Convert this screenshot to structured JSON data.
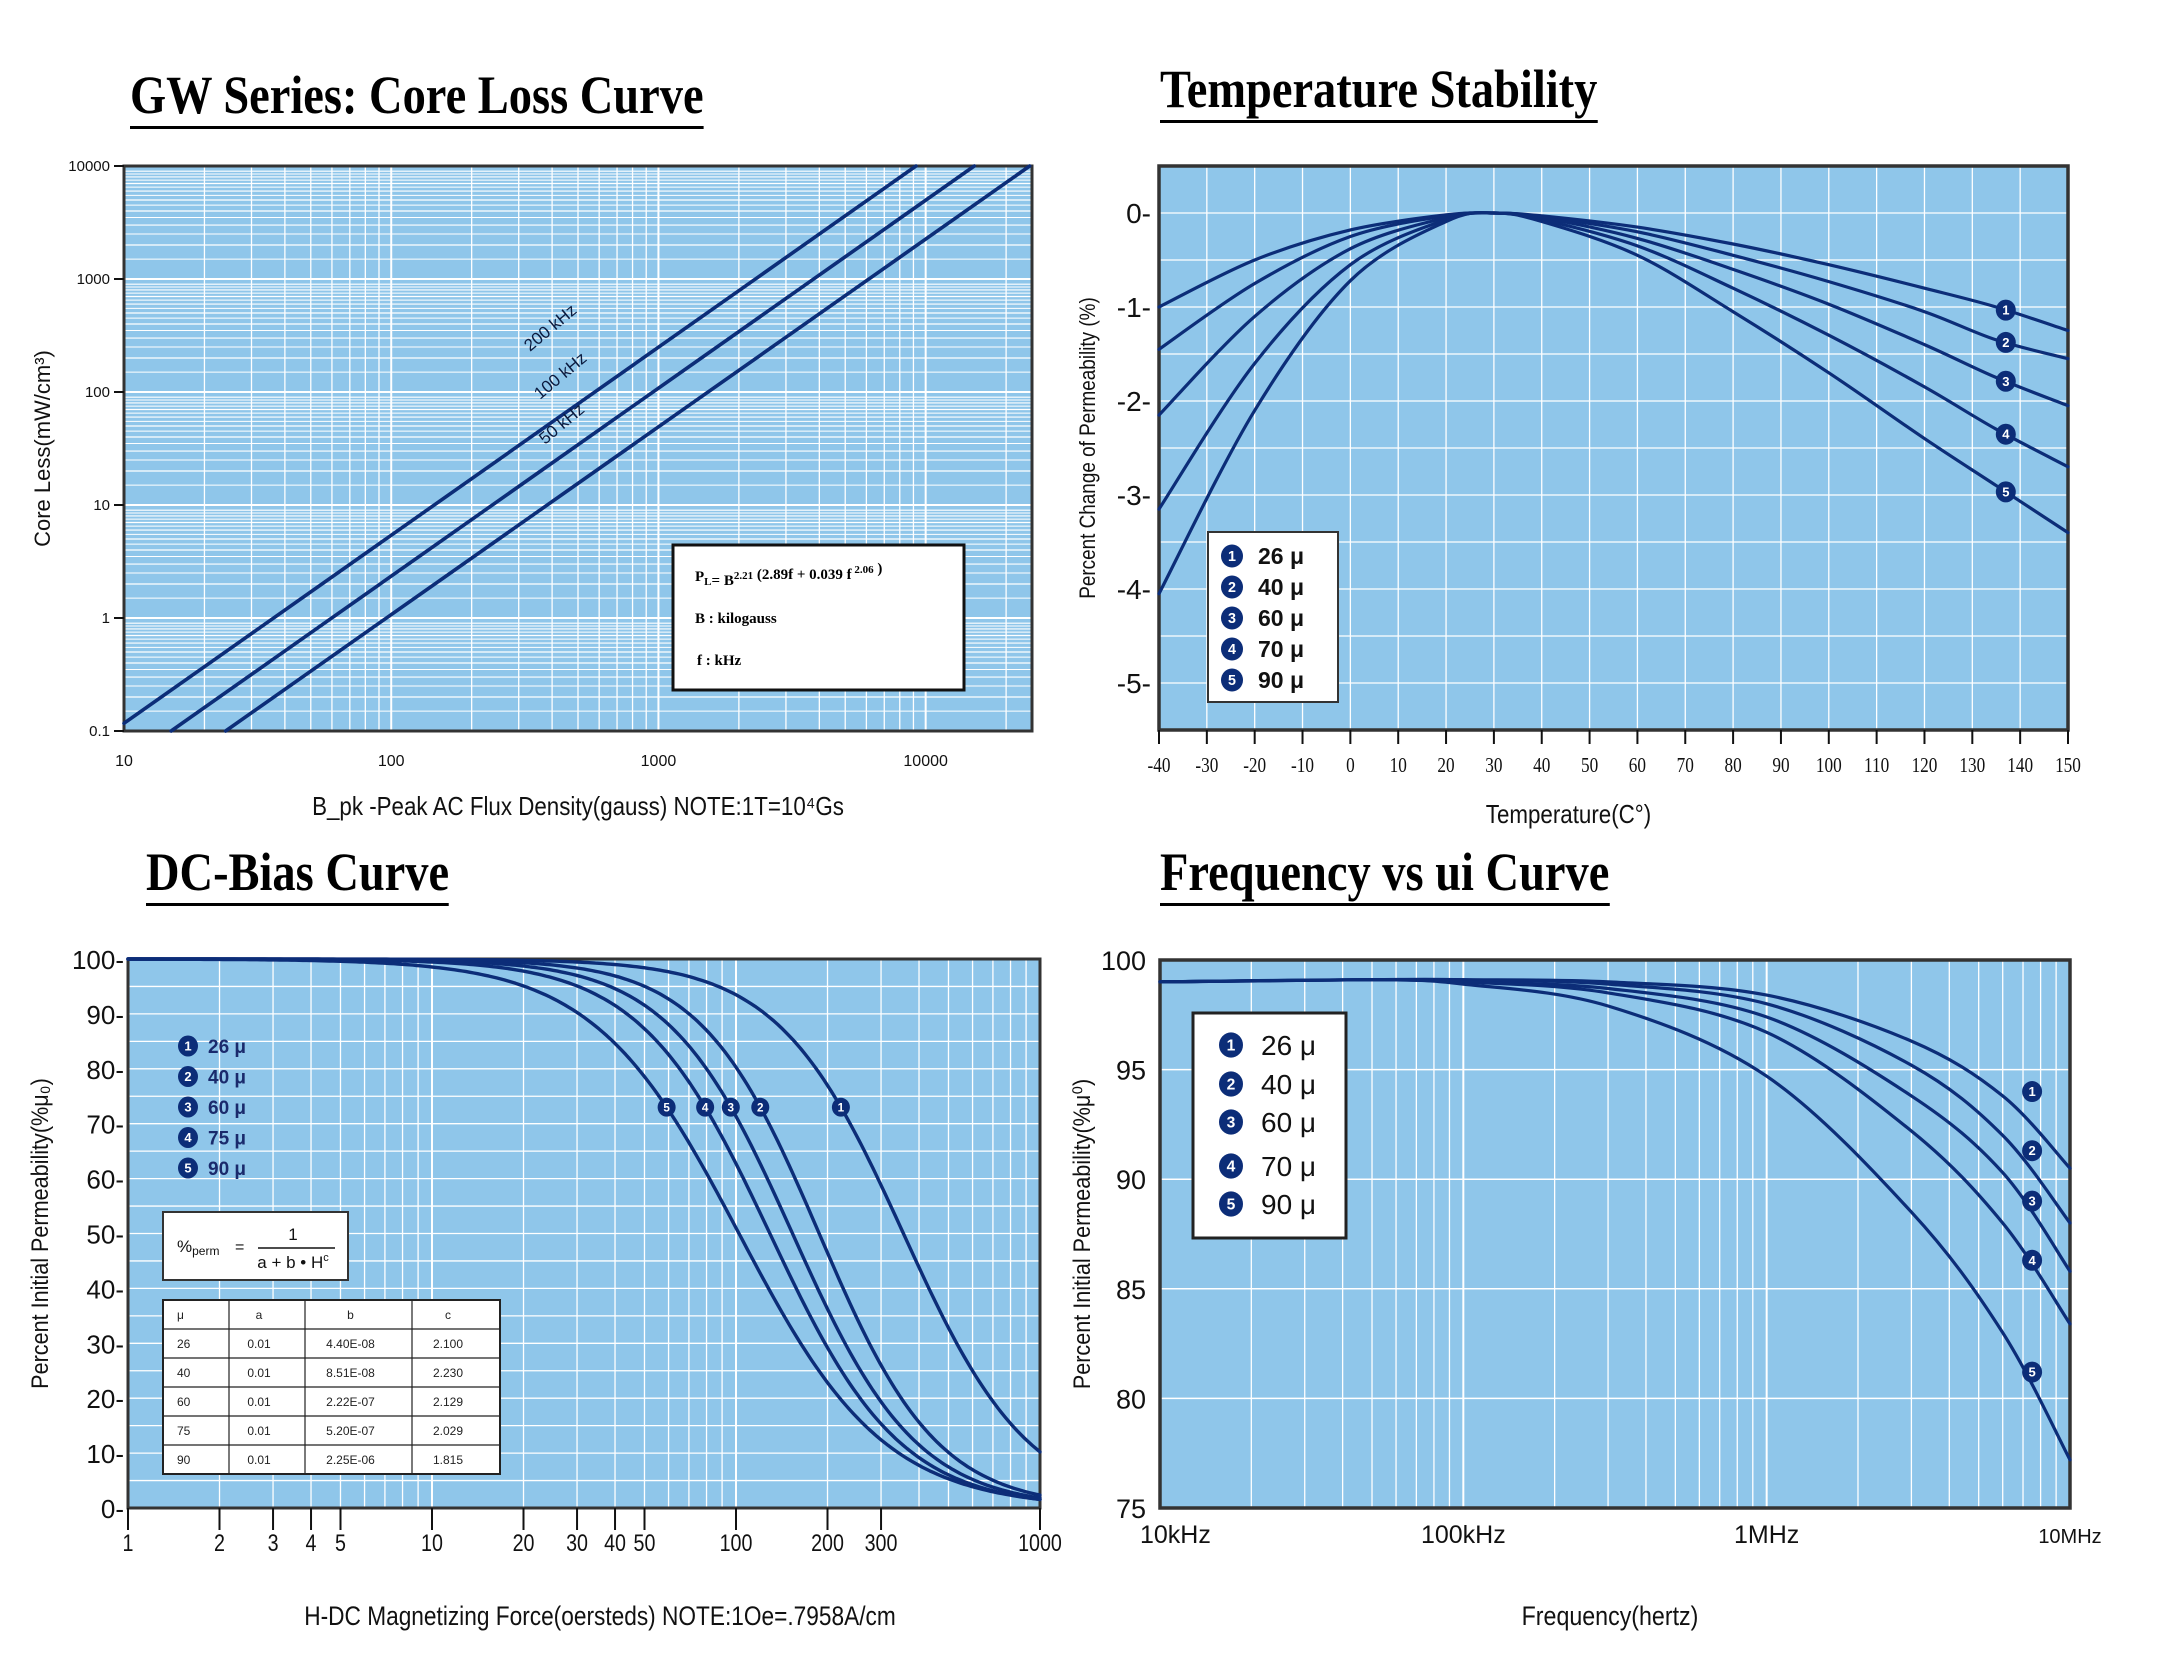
{
  "panels": {
    "core_loss": {
      "title": "GW Series: Core Loss Curve"
    },
    "temperature": {
      "title": "Temperature Stability"
    },
    "dc_bias": {
      "title": "DC-Bias Curve"
    },
    "frequency": {
      "title": "Frequency vs ui Curve"
    }
  },
  "colors": {
    "plot_bg": "#8fc6ea",
    "grid": "#ffffff",
    "curve": "#0c2d78",
    "frame": "#333333"
  },
  "icon": "circled-number-marker",
  "chart_data": [
    {
      "id": "core_loss",
      "type": "line",
      "title": "GW Series: Core Loss Curve",
      "xlabel": "B_pk -Peak AC Flux Density(gauss)  NOTE:1T=10⁴Gs",
      "ylabel": "Core Less(mW/cm³)",
      "xscale": "log",
      "yscale": "log",
      "xlim": [
        10,
        25000
      ],
      "ylim": [
        0.1,
        10000
      ],
      "xticks": [
        "10",
        "100",
        "1000",
        "10000"
      ],
      "yticks": [
        "0.1",
        "1",
        "10",
        "100",
        "1000",
        "10000"
      ],
      "grid": true,
      "series": [
        {
          "name": "200 kHz",
          "x": [
            10,
            9200
          ],
          "y": [
            0.117,
            10000
          ]
        },
        {
          "name": "100 kHz",
          "x": [
            15,
            15200
          ],
          "y": [
            0.1,
            10000
          ]
        },
        {
          "name": "50 kHz",
          "x": [
            24,
            24500
          ],
          "y": [
            0.1,
            10000
          ]
        }
      ],
      "formula": {
        "line1": "P",
        "line1_sub": "L",
        "line1_mid": "= B",
        "line1_sup": "2.21",
        "line1_rest": " (2.89f + 0.039 f",
        "line1_sup2": " 2.06",
        "line1_end": " )",
        "line2": "B : kilogauss",
        "line3": "f  : kHz"
      }
    },
    {
      "id": "temperature",
      "type": "line",
      "title": "Temperature Stability",
      "xlabel": "Temperature(C°)",
      "ylabel": "Percent Change of Permeability (%)",
      "xlim": [
        -40,
        150
      ],
      "ylim": [
        -5.5,
        0.5
      ],
      "xticks": [
        "-40",
        "-30",
        "-20",
        "-10",
        "0",
        "10",
        "20",
        "30",
        "40",
        "50",
        "60",
        "70",
        "80",
        "90",
        "100",
        "110",
        "120",
        "130",
        "140",
        "150"
      ],
      "yticks": [
        "0-",
        "-1-",
        "-2-",
        "-3-",
        "-4-",
        "-5-"
      ],
      "grid": true,
      "legend": {
        "placement": "bottom-left",
        "entries": [
          "26 μ",
          "40 μ",
          "60 μ",
          "70 μ",
          "90 μ"
        ]
      },
      "series": [
        {
          "name": "26 μ",
          "x": [
            -40,
            -20,
            0,
            20,
            30,
            40,
            60,
            80,
            100,
            120,
            135,
            150
          ],
          "y": [
            -1.0,
            -0.5,
            -0.18,
            -0.02,
            0,
            -0.03,
            -0.15,
            -0.33,
            -0.55,
            -0.8,
            -1.0,
            -1.25
          ]
        },
        {
          "name": "40 μ",
          "x": [
            -40,
            -20,
            0,
            20,
            30,
            40,
            60,
            80,
            100,
            120,
            135,
            150
          ],
          "y": [
            -1.45,
            -0.75,
            -0.25,
            -0.03,
            0,
            -0.04,
            -0.2,
            -0.45,
            -0.73,
            -1.05,
            -1.35,
            -1.55
          ]
        },
        {
          "name": "60 μ",
          "x": [
            -40,
            -20,
            0,
            20,
            30,
            40,
            60,
            80,
            100,
            120,
            135,
            150
          ],
          "y": [
            -2.15,
            -1.1,
            -0.38,
            -0.05,
            0,
            -0.05,
            -0.27,
            -0.6,
            -0.97,
            -1.4,
            -1.75,
            -2.05
          ]
        },
        {
          "name": "70 μ",
          "x": [
            -40,
            -20,
            0,
            20,
            30,
            40,
            60,
            80,
            100,
            120,
            135,
            150
          ],
          "y": [
            -3.15,
            -1.6,
            -0.55,
            -0.07,
            0,
            -0.07,
            -0.35,
            -0.8,
            -1.3,
            -1.85,
            -2.3,
            -2.7
          ]
        },
        {
          "name": "90 μ",
          "x": [
            -40,
            -20,
            0,
            20,
            30,
            40,
            60,
            80,
            100,
            120,
            135,
            150
          ],
          "y": [
            -4.05,
            -2.1,
            -0.72,
            -0.09,
            0,
            -0.09,
            -0.45,
            -1.05,
            -1.7,
            -2.4,
            -2.9,
            -3.4
          ]
        }
      ]
    },
    {
      "id": "dc_bias",
      "type": "line",
      "title": "DC-Bias Curve",
      "xlabel": "H-DC Magnetizing Force(oersteds) NOTE:1Oe=.7958A/cm",
      "ylabel": "Percent Initial Permeability(%μ₀)",
      "xscale": "log",
      "xlim": [
        1,
        1000
      ],
      "ylim": [
        0,
        100
      ],
      "xticks": [
        "1",
        "2",
        "3",
        "4",
        "5",
        "10",
        "20",
        "30",
        "40",
        "50",
        "100",
        "200",
        "300",
        "1000"
      ],
      "yticks": [
        "0-",
        "10-",
        "20-",
        "30-",
        "40-",
        "50-",
        "60-",
        "70-",
        "80-",
        "90-",
        "100-"
      ],
      "grid": true,
      "legend": {
        "placement": "top-left",
        "entries": [
          "26 μ",
          "40 μ",
          "60 μ",
          "75 μ",
          "90 μ"
        ]
      },
      "formula": {
        "lhs": "%",
        "lhs_sub": "perm",
        "eq": "=",
        "num": "1",
        "den": "a + b • H",
        "den_sup": "c"
      },
      "table": {
        "columns": [
          "μ",
          "a",
          "b",
          "c"
        ],
        "rows": [
          [
            "26",
            "0.01",
            "4.40E-08",
            "2.100"
          ],
          [
            "40",
            "0.01",
            "8.51E-08",
            "2.230"
          ],
          [
            "60",
            "0.01",
            "2.22E-07",
            "2.129"
          ],
          [
            "75",
            "0.01",
            "5.20E-07",
            "2.029"
          ],
          [
            "90",
            "0.01",
            "2.25E-06",
            "1.815"
          ]
        ]
      },
      "series": [
        {
          "name": "26 μ",
          "a": 0.01,
          "b": 4.4e-08,
          "c": 2.1
        },
        {
          "name": "40 μ",
          "a": 0.01,
          "b": 8.51e-08,
          "c": 2.23
        },
        {
          "name": "60 μ",
          "a": 0.01,
          "b": 2.22e-07,
          "c": 2.129
        },
        {
          "name": "75 μ",
          "a": 0.01,
          "b": 5.2e-07,
          "c": 2.029
        },
        {
          "name": "90 μ",
          "a": 0.01,
          "b": 2.25e-06,
          "c": 1.815
        }
      ],
      "markers": [
        {
          "label": "1",
          "x": 210,
          "y": 73
        },
        {
          "label": "2",
          "x": 120,
          "y": 73
        },
        {
          "label": "3",
          "x": 93,
          "y": 73
        },
        {
          "label": "4",
          "x": 75,
          "y": 73
        },
        {
          "label": "5",
          "x": 58,
          "y": 73
        }
      ]
    },
    {
      "id": "frequency",
      "type": "line",
      "title": "Frequency vs ui Curve",
      "xlabel": "Frequency(hertz)",
      "ylabel": "Percent Initial Permeability(%μ⁰)",
      "xscale": "log",
      "xlim": [
        10000,
        10000000
      ],
      "ylim": [
        75,
        100
      ],
      "xticks": [
        "10kHz",
        "100kHz",
        "1MHz",
        "10MHz"
      ],
      "yticks": [
        "75",
        "80",
        "85",
        "90",
        "95",
        "100"
      ],
      "grid": true,
      "legend": {
        "placement": "top-left",
        "entries": [
          "26 μ",
          "40 μ",
          "60 μ",
          "70 μ",
          "90 μ"
        ]
      },
      "series": [
        {
          "name": "26 μ",
          "x": [
            10000,
            50000,
            100000,
            300000,
            1000000,
            3000000,
            6000000,
            10000000
          ],
          "y": [
            99.0,
            99.1,
            99.1,
            99.0,
            98.4,
            96.3,
            93.8,
            90.5
          ]
        },
        {
          "name": "40 μ",
          "x": [
            10000,
            50000,
            100000,
            300000,
            1000000,
            3000000,
            6000000,
            10000000
          ],
          "y": [
            99.0,
            99.1,
            99.1,
            98.9,
            98.0,
            95.2,
            92.0,
            88.0
          ]
        },
        {
          "name": "60 μ",
          "x": [
            10000,
            50000,
            100000,
            300000,
            1000000,
            3000000,
            6000000,
            10000000
          ],
          "y": [
            99.0,
            99.1,
            99.0,
            98.7,
            97.4,
            93.8,
            90.3,
            85.8
          ]
        },
        {
          "name": "70 μ",
          "x": [
            10000,
            50000,
            100000,
            300000,
            1000000,
            3000000,
            6000000,
            10000000
          ],
          "y": [
            99.0,
            99.1,
            99.0,
            98.5,
            96.7,
            92.2,
            88.0,
            83.4
          ]
        },
        {
          "name": "90 μ",
          "x": [
            10000,
            50000,
            100000,
            300000,
            1000000,
            3000000,
            6000000,
            10000000
          ],
          "y": [
            99.0,
            99.1,
            98.9,
            97.9,
            94.7,
            88.5,
            83.0,
            77.2
          ]
        }
      ],
      "markers": [
        {
          "label": "1",
          "x": 7500000,
          "y": 94.0
        },
        {
          "label": "2",
          "x": 7500000,
          "y": 91.3
        },
        {
          "label": "3",
          "x": 7500000,
          "y": 89.0
        },
        {
          "label": "4",
          "x": 7500000,
          "y": 86.3
        },
        {
          "label": "5",
          "x": 7500000,
          "y": 81.2
        }
      ]
    }
  ]
}
